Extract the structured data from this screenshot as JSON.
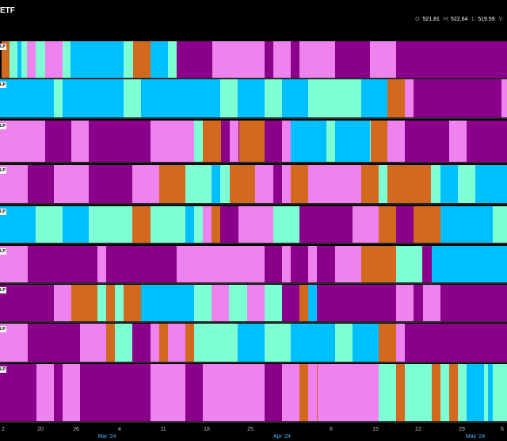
{
  "header": {
    "title": "ETF",
    "ohlc": [
      {
        "key": "O:",
        "value": "521.81"
      },
      {
        "key": "H:",
        "value": "522.64"
      },
      {
        "key": "L:",
        "value": "519.59"
      },
      {
        "key": "V:",
        "value": ""
      }
    ]
  },
  "colors": {
    "purple": "#8b008b",
    "pink": "#ee82ee",
    "aqua": "#7fffd4",
    "blue": "#00bfff",
    "orange": "#d2691e"
  },
  "rows": [
    {
      "label": "LP",
      "segments": [
        [
          "orange",
          2
        ],
        [
          "aqua",
          12
        ],
        [
          "blue",
          22
        ],
        [
          "aqua",
          27
        ],
        [
          "pink",
          34
        ],
        [
          "aqua",
          45
        ],
        [
          "pink",
          57
        ],
        [
          "aqua",
          79
        ],
        [
          "blue",
          89
        ],
        [
          "aqua",
          156
        ],
        [
          "orange",
          168
        ],
        [
          "blue",
          190
        ],
        [
          "aqua",
          212
        ],
        [
          "purple",
          223
        ],
        [
          "pink",
          268
        ],
        [
          "purple",
          334
        ],
        [
          "pink",
          345
        ],
        [
          "purple",
          367
        ],
        [
          "pink",
          378
        ],
        [
          "purple",
          423
        ],
        [
          "pink",
          467
        ],
        [
          "purple",
          500
        ]
      ]
    },
    {
      "label": "LP",
      "segments": [
        [
          "blue",
          0
        ],
        [
          "aqua",
          68
        ],
        [
          "blue",
          79
        ],
        [
          "aqua",
          156
        ],
        [
          "blue",
          178
        ],
        [
          "aqua",
          278
        ],
        [
          "blue",
          300
        ],
        [
          "aqua",
          334
        ],
        [
          "blue",
          356
        ],
        [
          "aqua",
          389
        ],
        [
          "blue",
          456
        ],
        [
          "orange",
          489
        ],
        [
          "pink",
          511
        ],
        [
          "purple",
          522
        ],
        [
          "pink",
          633
        ]
      ]
    },
    {
      "label": "LP",
      "segments": [
        [
          "pink",
          0
        ],
        [
          "purple",
          57
        ],
        [
          "pink",
          90
        ],
        [
          "purple",
          112
        ],
        [
          "pink",
          190
        ],
        [
          "aqua",
          245
        ],
        [
          "orange",
          256
        ],
        [
          "purple",
          279
        ],
        [
          "pink",
          290
        ],
        [
          "purple",
          301
        ],
        [
          "orange",
          302
        ],
        [
          "purple",
          334
        ],
        [
          "pink",
          356
        ],
        [
          "blue",
          367
        ],
        [
          "aqua",
          412
        ],
        [
          "blue",
          423
        ],
        [
          "aqua",
          467
        ],
        [
          "orange",
          468
        ],
        [
          "pink",
          489
        ],
        [
          "purple",
          511
        ],
        [
          "pink",
          567
        ],
        [
          "purple",
          589
        ]
      ]
    },
    {
      "label": "LP",
      "segments": [
        [
          "pink",
          0
        ],
        [
          "purple",
          35
        ],
        [
          "pink",
          68
        ],
        [
          "purple",
          112
        ],
        [
          "pink",
          167
        ],
        [
          "orange",
          201
        ],
        [
          "aqua",
          234
        ],
        [
          "blue",
          267
        ],
        [
          "aqua",
          278
        ],
        [
          "orange",
          290
        ],
        [
          "pink",
          322
        ],
        [
          "purple",
          345
        ],
        [
          "pink",
          356
        ],
        [
          "orange",
          367
        ],
        [
          "pink",
          389
        ],
        [
          "orange",
          456
        ],
        [
          "aqua",
          478
        ],
        [
          "orange",
          489
        ],
        [
          "aqua",
          544
        ],
        [
          "blue",
          556
        ],
        [
          "aqua",
          578
        ],
        [
          "blue",
          600
        ]
      ]
    },
    {
      "label": "LP",
      "segments": [
        [
          "blue",
          0
        ],
        [
          "aqua",
          45
        ],
        [
          "blue",
          79
        ],
        [
          "aqua",
          112
        ],
        [
          "orange",
          167
        ],
        [
          "aqua",
          190
        ],
        [
          "blue",
          234
        ],
        [
          "aqua",
          245
        ],
        [
          "pink",
          256
        ],
        [
          "orange",
          267
        ],
        [
          "purple",
          278
        ],
        [
          "pink",
          301
        ],
        [
          "aqua",
          345
        ],
        [
          "purple",
          378
        ],
        [
          "pink",
          445
        ],
        [
          "orange",
          478
        ],
        [
          "purple",
          500
        ],
        [
          "orange",
          522
        ],
        [
          "blue",
          556
        ],
        [
          "aqua",
          622
        ]
      ]
    },
    {
      "label": "LP",
      "segments": [
        [
          "pink",
          0
        ],
        [
          "purple",
          35
        ],
        [
          "pink",
          123
        ],
        [
          "purple",
          134
        ],
        [
          "pink",
          223
        ],
        [
          "purple",
          334
        ],
        [
          "pink",
          356
        ],
        [
          "purple",
          367
        ],
        [
          "pink",
          389
        ],
        [
          "purple",
          400
        ],
        [
          "pink",
          423
        ],
        [
          "orange",
          456
        ],
        [
          "aqua",
          500
        ],
        [
          "purple",
          533
        ],
        [
          "blue",
          545
        ]
      ]
    },
    {
      "label": "LP",
      "segments": [
        [
          "purple",
          0
        ],
        [
          "pink",
          68
        ],
        [
          "orange",
          90
        ],
        [
          "aqua",
          123
        ],
        [
          "orange",
          134
        ],
        [
          "aqua",
          145
        ],
        [
          "orange",
          156
        ],
        [
          "blue",
          178
        ],
        [
          "aqua",
          245
        ],
        [
          "pink",
          267
        ],
        [
          "aqua",
          289
        ],
        [
          "pink",
          312
        ],
        [
          "aqua",
          334
        ],
        [
          "purple",
          356
        ],
        [
          "orange",
          378
        ],
        [
          "blue",
          389
        ],
        [
          "purple",
          400
        ],
        [
          "pink",
          500
        ],
        [
          "purple",
          522
        ],
        [
          "pink",
          534
        ],
        [
          "purple",
          556
        ]
      ]
    },
    {
      "label": "LP",
      "segments": [
        [
          "pink",
          0
        ],
        [
          "purple",
          35
        ],
        [
          "pink",
          101
        ],
        [
          "orange",
          134
        ],
        [
          "aqua",
          145
        ],
        [
          "purple",
          167
        ],
        [
          "pink",
          190
        ],
        [
          "orange",
          201
        ],
        [
          "pink",
          212
        ],
        [
          "orange",
          234
        ],
        [
          "aqua",
          245
        ],
        [
          "blue",
          300
        ],
        [
          "aqua",
          334
        ],
        [
          "blue",
          367
        ],
        [
          "aqua",
          423
        ],
        [
          "blue",
          445
        ],
        [
          "orange",
          478
        ],
        [
          "pink",
          500
        ],
        [
          "purple",
          511
        ]
      ]
    },
    {
      "label": "LP",
      "segments": [
        [
          "purple",
          0
        ],
        [
          "pink",
          46
        ],
        [
          "purple",
          68
        ],
        [
          "pink",
          79
        ],
        [
          "purple",
          101
        ],
        [
          "pink",
          190
        ],
        [
          "purple",
          234
        ],
        [
          "pink",
          256
        ],
        [
          "purple",
          334
        ],
        [
          "pink",
          356
        ],
        [
          "orange",
          378
        ],
        [
          "pink",
          389
        ],
        [
          "orange",
          400
        ],
        [
          "pink",
          401
        ],
        [
          "aqua",
          478
        ],
        [
          "orange",
          500
        ],
        [
          "aqua",
          511
        ],
        [
          "orange",
          545
        ],
        [
          "aqua",
          556
        ],
        [
          "orange",
          567
        ],
        [
          "aqua",
          578
        ],
        [
          "blue",
          589
        ],
        [
          "aqua",
          611
        ],
        [
          "blue",
          616
        ],
        [
          "aqua",
          622
        ]
      ]
    }
  ],
  "axis": {
    "ticks": [
      {
        "label": "2",
        "pos": 0.5
      },
      {
        "label": "20",
        "pos": 51
      },
      {
        "label": "26",
        "pos": 96
      },
      {
        "label": "4",
        "pos": 151
      },
      {
        "label": "11",
        "pos": 206
      },
      {
        "label": "18",
        "pos": 261
      },
      {
        "label": "25",
        "pos": 316
      },
      {
        "label": "8",
        "pos": 418
      },
      {
        "label": "15",
        "pos": 474
      },
      {
        "label": "22",
        "pos": 528
      },
      {
        "label": "29",
        "pos": 583
      },
      {
        "label": "6",
        "pos": 638
      }
    ],
    "months": [
      {
        "label": "Mar '24",
        "pos": 135
      },
      {
        "label": "Apr '24",
        "pos": 356
      },
      {
        "label": "May '24",
        "pos": 600
      }
    ]
  }
}
